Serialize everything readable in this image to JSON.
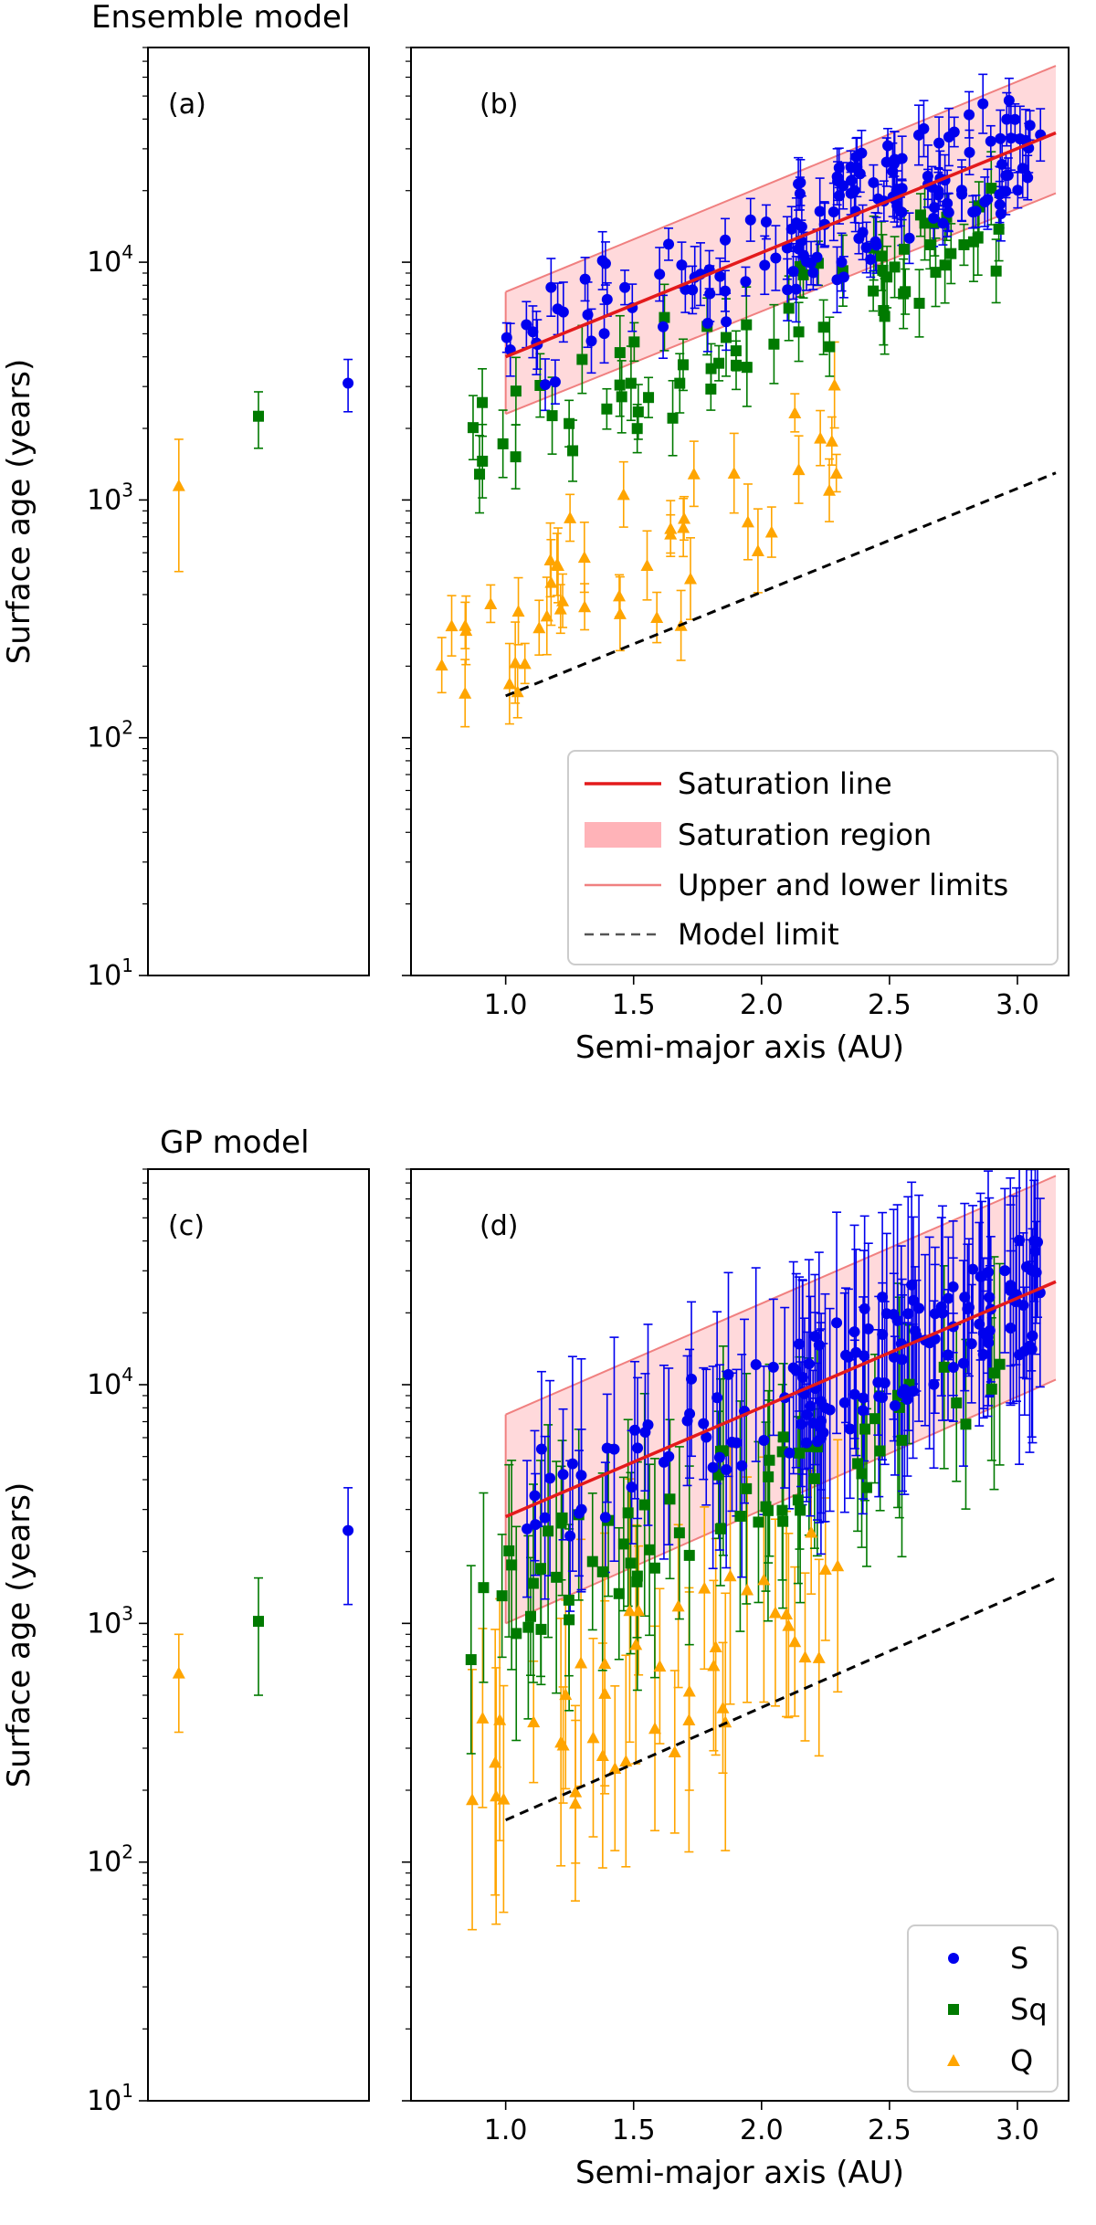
{
  "figure": {
    "top_title": "Ensemble model",
    "bottom_title": "GP model"
  },
  "chart_data": [
    {
      "id": "a",
      "type": "scatter",
      "panel_label": "(a)",
      "title": "Ensemble model",
      "xlabel": "",
      "ylabel": "Surface age (years)",
      "yscale": "log",
      "ylim": [
        10,
        80000
      ],
      "ytick_labels": [
        "10^1",
        "10^2",
        "10^3",
        "10^4"
      ],
      "ytick_values": [
        10,
        100,
        1000,
        10000
      ],
      "points": [
        {
          "cls": "Q",
          "x": 0.1,
          "y": 1150,
          "lo": 500,
          "hi": 1800
        },
        {
          "cls": "Sq",
          "x": 0.5,
          "y": 2250,
          "lo": 1650,
          "hi": 2850
        },
        {
          "cls": "S",
          "x": 0.95,
          "y": 3100,
          "lo": 2350,
          "hi": 3900
        }
      ]
    },
    {
      "id": "b",
      "type": "scatter",
      "panel_label": "(b)",
      "xlabel": "Semi-major axis (AU)",
      "ylabel": "",
      "yscale": "log",
      "xlim": [
        0.63,
        3.2
      ],
      "ylim": [
        10,
        80000
      ],
      "xtick_labels": [
        "1.0",
        "1.5",
        "2.0",
        "2.5",
        "3.0"
      ],
      "xtick_values": [
        1.0,
        1.5,
        2.0,
        2.5,
        3.0
      ],
      "saturation_line": {
        "x": [
          1.0,
          3.15
        ],
        "y": [
          4000,
          35000
        ]
      },
      "saturation_upper": {
        "x": [
          1.0,
          3.15
        ],
        "y": [
          7500,
          67000
        ]
      },
      "saturation_lower": {
        "x": [
          1.0,
          3.15
        ],
        "y": [
          2300,
          19500
        ]
      },
      "model_limit": {
        "x": [
          1.0,
          3.15
        ],
        "y": [
          150,
          1300
        ]
      },
      "legend": {
        "position": "bottom-right",
        "entries": [
          "Saturation line",
          "Saturation region",
          "Upper and lower limits",
          "Model limit"
        ]
      },
      "gen": {
        "errS": 0.1,
        "errSq": 0.12,
        "errQ": 0.13
      }
    },
    {
      "id": "c",
      "type": "scatter",
      "panel_label": "(c)",
      "title": "GP model",
      "xlabel": "",
      "ylabel": "Surface age (years)",
      "yscale": "log",
      "ylim": [
        10,
        80000
      ],
      "ytick_labels": [
        "10^1",
        "10^2",
        "10^3",
        "10^4"
      ],
      "ytick_values": [
        10,
        100,
        1000,
        10000
      ],
      "points": [
        {
          "cls": "Q",
          "x": 0.1,
          "y": 620,
          "lo": 350,
          "hi": 900
        },
        {
          "cls": "Sq",
          "x": 0.5,
          "y": 1020,
          "lo": 500,
          "hi": 1550
        },
        {
          "cls": "S",
          "x": 0.95,
          "y": 2450,
          "lo": 1200,
          "hi": 3700
        }
      ]
    },
    {
      "id": "d",
      "type": "scatter",
      "panel_label": "(d)",
      "xlabel": "Semi-major axis (AU)",
      "ylabel": "",
      "yscale": "log",
      "xlim": [
        0.63,
        3.2
      ],
      "ylim": [
        10,
        80000
      ],
      "xtick_labels": [
        "1.0",
        "1.5",
        "2.0",
        "2.5",
        "3.0"
      ],
      "xtick_values": [
        1.0,
        1.5,
        2.0,
        2.5,
        3.0
      ],
      "saturation_line": {
        "x": [
          1.0,
          3.15
        ],
        "y": [
          2800,
          27000
        ]
      },
      "saturation_upper": {
        "x": [
          1.0,
          3.15
        ],
        "y": [
          7500,
          75000
        ]
      },
      "saturation_lower": {
        "x": [
          1.0,
          3.15
        ],
        "y": [
          1000,
          10500
        ]
      },
      "model_limit": {
        "x": [
          1.0,
          3.15
        ],
        "y": [
          150,
          1550
        ]
      },
      "legend": {
        "position": "bottom-right",
        "entries": [
          "S",
          "Sq",
          "Q"
        ]
      },
      "gen": {
        "errS": 0.35,
        "errSq": 0.35,
        "errQ": 0.4
      }
    }
  ],
  "series_style": {
    "S": {
      "color": "#0000ee",
      "marker": "circle"
    },
    "Sq": {
      "color": "#007a00",
      "marker": "square"
    },
    "Q": {
      "color": "#ffa500",
      "marker": "triangle"
    },
    "saturation_line": "#e31a1c",
    "saturation_region": "#ffb3b8",
    "limits": "#f08080",
    "model_limit": "#000000"
  }
}
